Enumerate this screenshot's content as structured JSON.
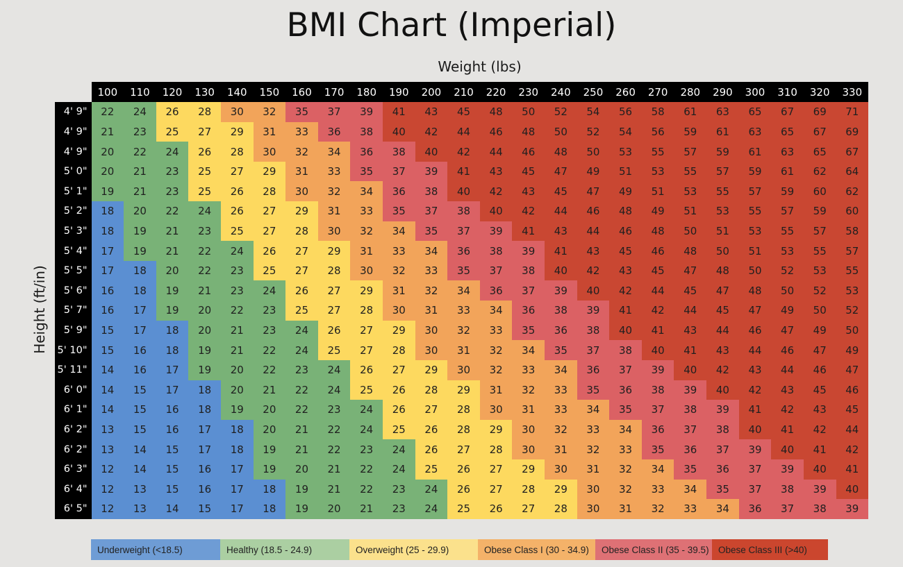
{
  "title": "BMI Chart (Imperial)",
  "x_axis_label": "Weight (lbs)",
  "y_axis_label": "Height (ft/in)",
  "colors": {
    "background": "#e5e4e2",
    "header_bg": "#000000",
    "header_text": "#ffffff",
    "cell_text": "#1f1f1f"
  },
  "chart_data": {
    "type": "heatmap",
    "x_title": "Weight (lbs)",
    "y_title": "Height (ft/in)",
    "columns": [
      100,
      110,
      120,
      130,
      140,
      150,
      160,
      170,
      180,
      190,
      200,
      210,
      220,
      230,
      240,
      250,
      260,
      270,
      280,
      290,
      300,
      310,
      320,
      330
    ],
    "rows": [
      "4' 9\"",
      "4' 9\"",
      "4' 9\"",
      "5' 0\"",
      "5' 1\"",
      "5' 2\"",
      "5' 3\"",
      "5' 4\"",
      "5' 5\"",
      "5' 6\"",
      "5' 7\"",
      "5' 9\"",
      "5' 10\"",
      "5' 11\"",
      "6' 0\"",
      "6' 1\"",
      "6' 2\"",
      "6' 2\"",
      "6' 3\"",
      "6' 4\"",
      "6' 5\""
    ],
    "values": [
      [
        22,
        24,
        26,
        28,
        30,
        32,
        35,
        37,
        39,
        41,
        43,
        45,
        48,
        50,
        52,
        54,
        56,
        58,
        61,
        63,
        65,
        67,
        69,
        71
      ],
      [
        21,
        23,
        25,
        27,
        29,
        31,
        33,
        36,
        38,
        40,
        42,
        44,
        46,
        48,
        50,
        52,
        54,
        56,
        59,
        61,
        63,
        65,
        67,
        69
      ],
      [
        20,
        22,
        24,
        26,
        28,
        30,
        32,
        34,
        36,
        38,
        40,
        42,
        44,
        46,
        48,
        50,
        53,
        55,
        57,
        59,
        61,
        63,
        65,
        67
      ],
      [
        20,
        21,
        23,
        25,
        27,
        29,
        31,
        33,
        35,
        37,
        39,
        41,
        43,
        45,
        47,
        49,
        51,
        53,
        55,
        57,
        59,
        61,
        62,
        64
      ],
      [
        19,
        21,
        23,
        25,
        26,
        28,
        30,
        32,
        34,
        36,
        38,
        40,
        42,
        43,
        45,
        47,
        49,
        51,
        53,
        55,
        57,
        59,
        60,
        62
      ],
      [
        18,
        20,
        22,
        24,
        26,
        27,
        29,
        31,
        33,
        35,
        37,
        38,
        40,
        42,
        44,
        46,
        48,
        49,
        51,
        53,
        55,
        57,
        59,
        60
      ],
      [
        18,
        19,
        21,
        23,
        25,
        27,
        28,
        30,
        32,
        34,
        35,
        37,
        39,
        41,
        43,
        44,
        46,
        48,
        50,
        51,
        53,
        55,
        57,
        58
      ],
      [
        17,
        19,
        21,
        22,
        24,
        26,
        27,
        29,
        31,
        33,
        34,
        36,
        38,
        39,
        41,
        43,
        45,
        46,
        48,
        50,
        51,
        53,
        55,
        57
      ],
      [
        17,
        18,
        20,
        22,
        23,
        25,
        27,
        28,
        30,
        32,
        33,
        35,
        37,
        38,
        40,
        42,
        43,
        45,
        47,
        48,
        50,
        52,
        53,
        55
      ],
      [
        16,
        18,
        19,
        21,
        23,
        24,
        26,
        27,
        29,
        31,
        32,
        34,
        36,
        37,
        39,
        40,
        42,
        44,
        45,
        47,
        48,
        50,
        52,
        53
      ],
      [
        16,
        17,
        19,
        20,
        22,
        23,
        25,
        27,
        28,
        30,
        31,
        33,
        34,
        36,
        38,
        39,
        41,
        42,
        44,
        45,
        47,
        49,
        50,
        52
      ],
      [
        15,
        17,
        18,
        20,
        21,
        23,
        24,
        26,
        27,
        29,
        30,
        32,
        33,
        35,
        36,
        38,
        40,
        41,
        43,
        44,
        46,
        47,
        49,
        50
      ],
      [
        15,
        16,
        18,
        19,
        21,
        22,
        24,
        25,
        27,
        28,
        30,
        31,
        32,
        34,
        35,
        37,
        38,
        40,
        41,
        43,
        44,
        46,
        47,
        49
      ],
      [
        14,
        16,
        17,
        19,
        20,
        22,
        23,
        24,
        26,
        27,
        29,
        30,
        32,
        33,
        34,
        36,
        37,
        39,
        40,
        42,
        43,
        44,
        46,
        47
      ],
      [
        14,
        15,
        17,
        18,
        20,
        21,
        22,
        24,
        25,
        26,
        28,
        29,
        31,
        32,
        33,
        35,
        36,
        38,
        39,
        40,
        42,
        43,
        45,
        46
      ],
      [
        14,
        15,
        16,
        18,
        19,
        20,
        22,
        23,
        24,
        26,
        27,
        28,
        30,
        31,
        33,
        34,
        35,
        37,
        38,
        39,
        41,
        42,
        43,
        45
      ],
      [
        13,
        15,
        16,
        17,
        18,
        20,
        21,
        22,
        24,
        25,
        26,
        28,
        29,
        30,
        32,
        33,
        34,
        36,
        37,
        38,
        40,
        41,
        42,
        44
      ],
      [
        13,
        14,
        15,
        17,
        18,
        19,
        21,
        22,
        23,
        24,
        26,
        27,
        28,
        30,
        31,
        32,
        33,
        35,
        36,
        37,
        39,
        40,
        41,
        42
      ],
      [
        12,
        14,
        15,
        16,
        17,
        19,
        20,
        21,
        22,
        24,
        25,
        26,
        27,
        29,
        30,
        31,
        32,
        34,
        35,
        36,
        37,
        39,
        40,
        41
      ],
      [
        12,
        13,
        15,
        16,
        17,
        18,
        19,
        21,
        22,
        23,
        24,
        26,
        27,
        28,
        29,
        30,
        32,
        33,
        34,
        35,
        37,
        38,
        39,
        40
      ],
      [
        12,
        13,
        14,
        15,
        17,
        18,
        19,
        20,
        21,
        23,
        24,
        25,
        26,
        27,
        28,
        30,
        31,
        32,
        33,
        34,
        36,
        37,
        38,
        39
      ]
    ],
    "categories": [
      {
        "label": "Underweight (<18.5)",
        "max": 18,
        "cell_color": "#5b8fd2",
        "legend_color": "#6e9cd5"
      },
      {
        "label": "Healthy (18.5 - 24.9)",
        "max": 24,
        "cell_color": "#79b277",
        "legend_color": "#abcfa2"
      },
      {
        "label": "Overweight (25 - 29.9)",
        "max": 29,
        "cell_color": "#fdd95f",
        "legend_color": "#fbe18c"
      },
      {
        "label": "Obese Class I (30 - 34.9)",
        "max": 34,
        "cell_color": "#f2a45a",
        "legend_color": "#f4b269"
      },
      {
        "label": "Obese Class II (35 - 39.5)",
        "max": 39,
        "cell_color": "#db6164",
        "legend_color": "#de7175"
      },
      {
        "label": "Obese Class III (>40)",
        "max": 999,
        "cell_color": "#c94732",
        "legend_color": "#cb462e"
      }
    ],
    "legend_position": "bottom"
  }
}
